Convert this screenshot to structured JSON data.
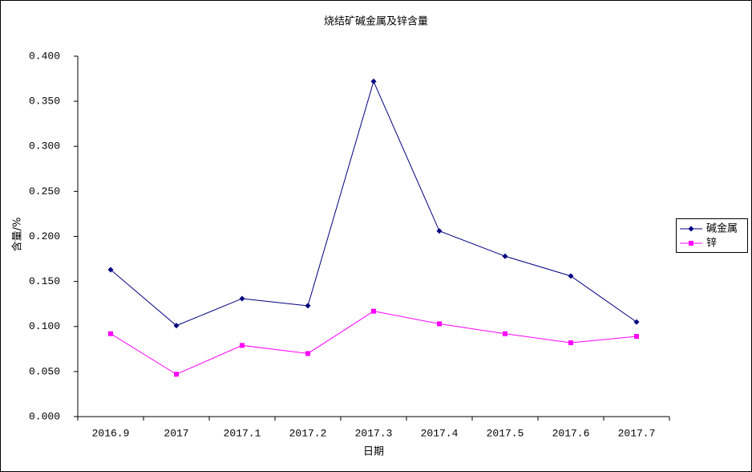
{
  "chart_data": {
    "type": "line",
    "title": "烧结矿碱金属及锌含量",
    "x_label": "日期",
    "y_label": "含量/%",
    "categories": [
      "2016.9",
      "2017",
      "2017.1",
      "2017.2",
      "2017.3",
      "2017.4",
      "2017.5",
      "2017.6",
      "2017.7"
    ],
    "series": [
      {
        "name": "碱金属",
        "color": "#000080",
        "marker": "diamond",
        "values": [
          0.163,
          0.101,
          0.131,
          0.123,
          0.372,
          0.206,
          0.178,
          0.156,
          0.105
        ]
      },
      {
        "name": "锌",
        "color": "#ff00ff",
        "marker": "square",
        "values": [
          0.092,
          0.047,
          0.079,
          0.07,
          0.117,
          0.103,
          0.092,
          0.082,
          0.089
        ]
      }
    ],
    "ylim": [
      0,
      0.4
    ],
    "yticks": [
      {
        "value": 0,
        "label": "0.000"
      },
      {
        "value": 0.05,
        "label": "0.050"
      },
      {
        "value": 0.1,
        "label": "0.100"
      },
      {
        "value": 0.15,
        "label": "0.150"
      },
      {
        "value": 0.2,
        "label": "0.200"
      },
      {
        "value": 0.25,
        "label": "0.250"
      },
      {
        "value": 0.3,
        "label": "0.300"
      },
      {
        "value": 0.35,
        "label": "0.350"
      },
      {
        "value": 0.4,
        "label": "0.400"
      }
    ],
    "grid": false,
    "legend": "right"
  }
}
